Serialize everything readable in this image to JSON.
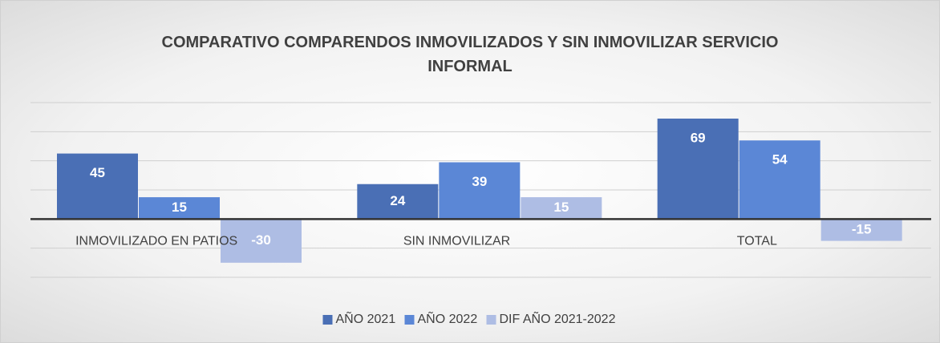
{
  "chart_data": {
    "type": "bar",
    "title": "COMPARATIVO COMPARENDOS INMOVILIZADOS Y SIN INMOVILIZAR SERVICIO INFORMAL",
    "categories": [
      "INMOVILIZADO EN PATIOS",
      "SIN INMOVILIZAR",
      "TOTAL"
    ],
    "series": [
      {
        "name": "AÑO 2021",
        "color": "#4a6fb5",
        "values": [
          45,
          24,
          69
        ]
      },
      {
        "name": "AÑO 2022",
        "color": "#5b87d6",
        "values": [
          15,
          39,
          54
        ]
      },
      {
        "name": "DIF AÑO 2021-2022",
        "color": "#aebde4",
        "values": [
          -30,
          15,
          -15
        ]
      }
    ],
    "ylim": [
      -40,
      80
    ],
    "yticks": [
      -40,
      -20,
      0,
      20,
      40,
      60,
      80
    ],
    "grid": true,
    "legend": "bottom"
  }
}
